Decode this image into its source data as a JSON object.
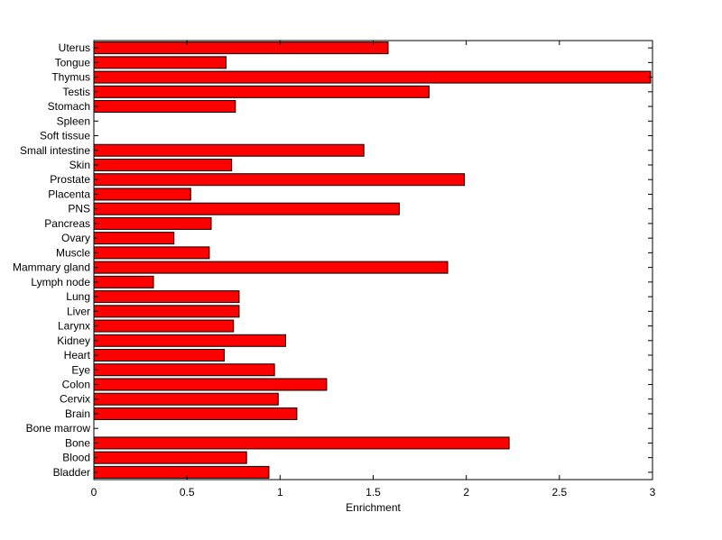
{
  "chart_data": {
    "type": "bar",
    "orientation": "horizontal",
    "title": "",
    "xlabel": "Enrichment",
    "ylabel": "",
    "xlim": [
      0,
      3
    ],
    "x_ticks": [
      "0",
      "0.5",
      "1",
      "1.5",
      "2",
      "2.5",
      "3"
    ],
    "grid": false,
    "bar_color": "#ff0000",
    "categories": [
      "Bladder",
      "Blood",
      "Bone",
      "Bone marrow",
      "Brain",
      "Cervix",
      "Colon",
      "Eye",
      "Heart",
      "Kidney",
      "Larynx",
      "Liver",
      "Lung",
      "Lymph node",
      "Mammary gland",
      "Muscle",
      "Ovary",
      "Pancreas",
      "PNS",
      "Placenta",
      "Prostate",
      "Skin",
      "Small intestine",
      "Soft tissue",
      "Spleen",
      "Stomach",
      "Testis",
      "Thymus",
      "Tongue",
      "Uterus"
    ],
    "values": [
      0.94,
      0.82,
      2.23,
      0,
      1.09,
      0.99,
      1.25,
      0.97,
      0.7,
      1.03,
      0.75,
      0.78,
      0.78,
      0.32,
      1.9,
      0.62,
      0.43,
      0.63,
      1.64,
      0.52,
      1.99,
      0.74,
      1.45,
      0,
      0,
      0.76,
      1.8,
      2.99,
      0.71,
      1.58
    ]
  }
}
